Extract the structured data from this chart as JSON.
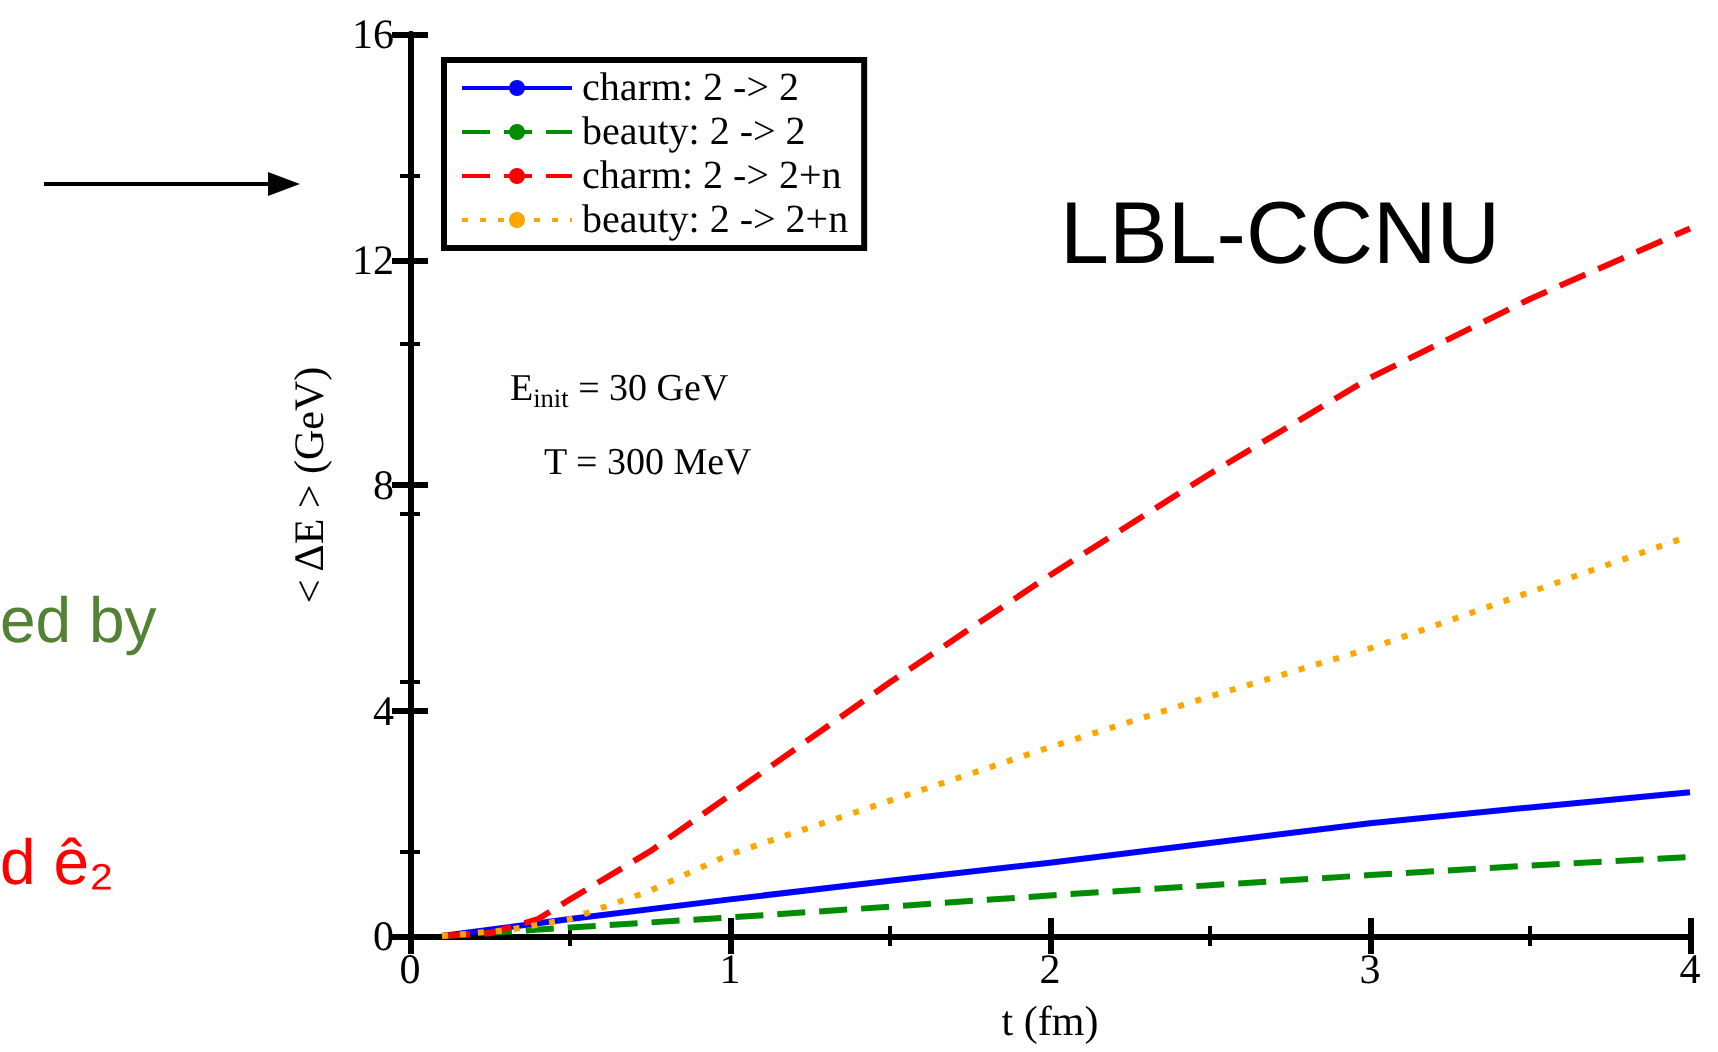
{
  "chart_data": {
    "type": "line",
    "xlabel": "t (fm)",
    "ylabel": "< ΔE > (GeV)",
    "xlim": [
      0,
      4
    ],
    "xticks": [
      0,
      1,
      2,
      3,
      4
    ],
    "ylim": [
      0,
      16
    ],
    "yticks": [
      0,
      4,
      8,
      12,
      16
    ],
    "grid": false,
    "legend": "top left",
    "marker": "none",
    "annotations": [
      "E$_{init}$ = 30 GeV",
      "T = 300 MeV",
      "LBL-CCNU",
      "ed by",
      "d ê₂"
    ],
    "series": [
      {
        "name": "charm: 2 -> 2",
        "color": "#0000ff",
        "line_style": "solid",
        "x": [
          0.1,
          0.5,
          1,
          1.5,
          2,
          2.5,
          3,
          3.5,
          4
        ],
        "values": [
          0,
          0.3,
          0.65,
          0.98,
          1.3,
          1.65,
          2.0,
          2.28,
          2.55
        ]
      },
      {
        "name": "beauty: 2 -> 2",
        "color": "#008c00",
        "line_style": "dashed",
        "x": [
          0.1,
          0.5,
          1,
          1.5,
          2,
          2.5,
          3,
          3.5,
          4
        ],
        "values": [
          0,
          0.15,
          0.33,
          0.52,
          0.72,
          0.9,
          1.08,
          1.25,
          1.4
        ]
      },
      {
        "name": "charm: 2 -> 2+n",
        "color": "#ff0000",
        "line_style": "dashed",
        "x": [
          0.1,
          0.25,
          0.4,
          0.5,
          0.75,
          1,
          1.5,
          2,
          2.5,
          3,
          3.5,
          4
        ],
        "values": [
          0,
          0.05,
          0.3,
          0.65,
          1.5,
          2.5,
          4.5,
          6.4,
          8.2,
          9.9,
          11.3,
          12.55
        ]
      },
      {
        "name": "beauty: 2 -> 2+n",
        "color": "#ffa500",
        "line_style": "dotted",
        "x": [
          0.1,
          0.3,
          0.5,
          0.75,
          1,
          1.5,
          2,
          2.5,
          3,
          3.5,
          4
        ],
        "values": [
          0,
          0.1,
          0.3,
          0.8,
          1.45,
          2.4,
          3.35,
          4.25,
          5.1,
          6.1,
          7.1
        ]
      }
    ]
  }
}
